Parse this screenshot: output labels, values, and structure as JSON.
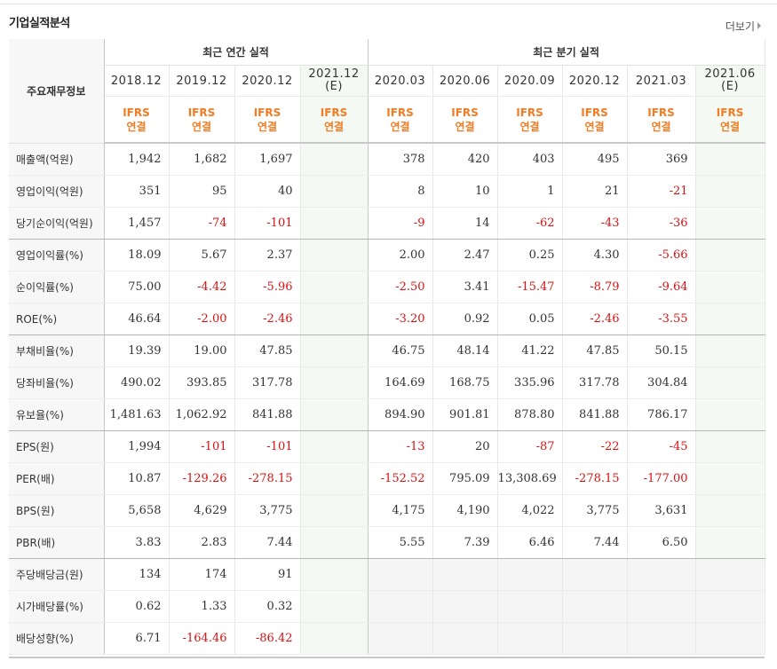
{
  "section": {
    "title": "기업실적분석",
    "more_label": "더보기"
  },
  "header": {
    "label": "주요재무정보",
    "annual_title": "최근 연간 실적",
    "quarter_title": "최근 분기 실적",
    "annual_periods": [
      "2018.12",
      "2019.12",
      "2020.12",
      "2021.12"
    ],
    "annual_estimate_marks": [
      "",
      "",
      "",
      "(E)"
    ],
    "quarter_periods": [
      "2020.03",
      "2020.06",
      "2020.09",
      "2020.12",
      "2021.03",
      "2021.06"
    ],
    "quarter_estimate_marks": [
      "",
      "",
      "",
      "",
      "",
      "(E)"
    ],
    "standard_line1": "IFRS",
    "standard_line2": "연결"
  },
  "rows": [
    {
      "label": "매출액(억원)",
      "annual": [
        "1,942",
        "1,682",
        "1,697",
        ""
      ],
      "quarter": [
        "378",
        "420",
        "403",
        "495",
        "369",
        ""
      ]
    },
    {
      "label": "영업이익(억원)",
      "annual": [
        "351",
        "95",
        "40",
        ""
      ],
      "quarter": [
        "8",
        "10",
        "1",
        "21",
        "-21",
        ""
      ]
    },
    {
      "label": "당기순이익(억원)",
      "annual": [
        "1,457",
        "-74",
        "-101",
        ""
      ],
      "quarter": [
        "-9",
        "14",
        "-62",
        "-43",
        "-36",
        ""
      ]
    },
    {
      "label": "영업이익률(%)",
      "annual": [
        "18.09",
        "5.67",
        "2.37",
        ""
      ],
      "quarter": [
        "2.00",
        "2.47",
        "0.25",
        "4.30",
        "-5.66",
        ""
      ]
    },
    {
      "label": "순이익률(%)",
      "annual": [
        "75.00",
        "-4.42",
        "-5.96",
        ""
      ],
      "quarter": [
        "-2.50",
        "3.41",
        "-15.47",
        "-8.79",
        "-9.64",
        ""
      ]
    },
    {
      "label": "ROE(%)",
      "annual": [
        "46.64",
        "-2.00",
        "-2.46",
        ""
      ],
      "quarter": [
        "-3.20",
        "0.92",
        "0.05",
        "-2.46",
        "-3.55",
        ""
      ]
    },
    {
      "label": "부채비율(%)",
      "annual": [
        "19.39",
        "19.00",
        "47.85",
        ""
      ],
      "quarter": [
        "46.75",
        "48.14",
        "41.22",
        "47.85",
        "50.15",
        ""
      ]
    },
    {
      "label": "당좌비율(%)",
      "annual": [
        "490.02",
        "393.85",
        "317.78",
        ""
      ],
      "quarter": [
        "164.69",
        "168.75",
        "335.96",
        "317.78",
        "304.84",
        ""
      ]
    },
    {
      "label": "유보율(%)",
      "annual": [
        "1,481.63",
        "1,062.92",
        "841.88",
        ""
      ],
      "quarter": [
        "894.90",
        "901.81",
        "878.80",
        "841.88",
        "786.17",
        ""
      ]
    },
    {
      "label": "EPS(원)",
      "annual": [
        "1,994",
        "-101",
        "-101",
        ""
      ],
      "quarter": [
        "-13",
        "20",
        "-87",
        "-22",
        "-45",
        ""
      ]
    },
    {
      "label": "PER(배)",
      "annual": [
        "10.87",
        "-129.26",
        "-278.15",
        ""
      ],
      "quarter": [
        "-152.52",
        "795.09",
        "13,308.69",
        "-278.15",
        "-177.00",
        ""
      ]
    },
    {
      "label": "BPS(원)",
      "annual": [
        "5,658",
        "4,629",
        "3,775",
        ""
      ],
      "quarter": [
        "4,175",
        "4,190",
        "4,022",
        "3,775",
        "3,631",
        ""
      ]
    },
    {
      "label": "PBR(배)",
      "annual": [
        "3.83",
        "2.83",
        "7.44",
        ""
      ],
      "quarter": [
        "5.55",
        "7.39",
        "6.46",
        "7.44",
        "6.50",
        ""
      ]
    },
    {
      "label": "주당배당금(원)",
      "annual": [
        "134",
        "174",
        "91",
        ""
      ],
      "quarter": [
        "",
        "",
        "",
        "",
        "",
        ""
      ]
    },
    {
      "label": "시가배당률(%)",
      "annual": [
        "0.62",
        "1.33",
        "0.32",
        ""
      ],
      "quarter": [
        "",
        "",
        "",
        "",
        "",
        ""
      ]
    },
    {
      "label": "배당성향(%)",
      "annual": [
        "6.71",
        "-164.46",
        "-86.42",
        ""
      ],
      "quarter": [
        "",
        "",
        "",
        "",
        "",
        ""
      ]
    }
  ],
  "colors": {
    "accent_orange": "#f37b21",
    "estimate_green": "#2e9a2e",
    "negative_red": "#dd1111"
  }
}
